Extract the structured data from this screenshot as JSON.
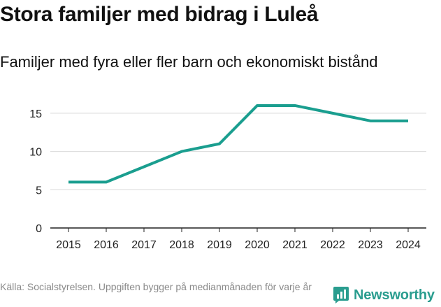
{
  "header": {
    "title": "Stora familjer med bidrag i Luleå",
    "subtitle": "Familjer med fyra eller fler barn och ekonomiskt bistånd"
  },
  "footer": {
    "source": "Källa: Socialstyrelsen. Uppgiften bygger på medianmånaden för varje år",
    "brand": "Newsworthy"
  },
  "colors": {
    "line": "#1a9e8f",
    "grid": "#d9d9d9",
    "axis": "#222222",
    "brand": "#2a9d8f"
  },
  "chart_data": {
    "type": "line",
    "title": "Stora familjer med bidrag i Luleå",
    "subtitle": "Familjer med fyra eller fler barn och ekonomiskt bistånd",
    "xlabel": "",
    "ylabel": "",
    "x": [
      "2015",
      "2016",
      "2017",
      "2018",
      "2019",
      "2020",
      "2021",
      "2022",
      "2023",
      "2024"
    ],
    "series": [
      {
        "name": "Familjer med fyra eller fler barn och ekonomiskt bistånd",
        "values": [
          6,
          6,
          8,
          10,
          11,
          16,
          16,
          15,
          14,
          14
        ]
      }
    ],
    "ylim": [
      0,
      17
    ],
    "yticks": [
      0,
      5,
      10,
      15
    ],
    "grid": true
  }
}
